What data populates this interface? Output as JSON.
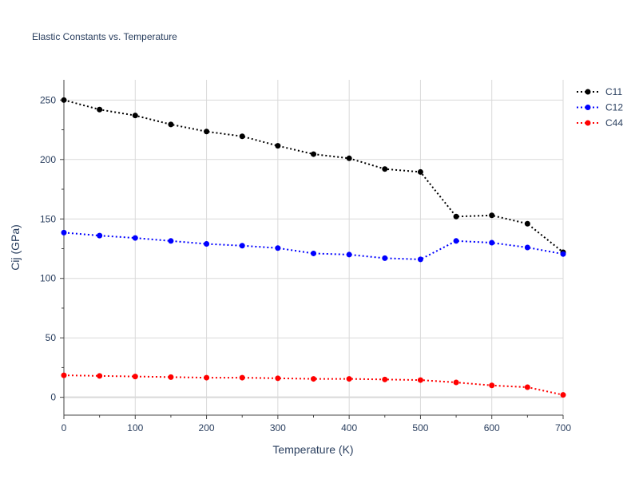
{
  "chart_data": {
    "type": "line",
    "title": "Elastic Constants vs. Temperature",
    "xlabel": "Temperature (K)",
    "ylabel": "Cij (GPa)",
    "x": [
      0,
      50,
      100,
      150,
      200,
      250,
      300,
      350,
      400,
      450,
      500,
      550,
      600,
      650,
      700
    ],
    "series": [
      {
        "name": "C11",
        "color": "#000000",
        "values": [
          250,
          242,
          237,
          229.5,
          223.5,
          219.5,
          211.5,
          204.5,
          201,
          192,
          189.5,
          152,
          153,
          146,
          122
        ]
      },
      {
        "name": "C12",
        "color": "#0000ff",
        "values": [
          138.5,
          136,
          134,
          131.5,
          129,
          127.5,
          125.5,
          121,
          120,
          117,
          116,
          131.5,
          130,
          126,
          120.5
        ]
      },
      {
        "name": "C44",
        "color": "#ff0000",
        "values": [
          18.5,
          18,
          17.5,
          17,
          16.5,
          16.5,
          16,
          15.5,
          15.5,
          15,
          14.5,
          12.5,
          10,
          8.5,
          2
        ]
      }
    ],
    "xlim": [
      0,
      700
    ],
    "ylim": [
      -15,
      267
    ],
    "xticks": [
      0,
      100,
      200,
      300,
      400,
      500,
      600,
      700
    ],
    "yticks": [
      0,
      50,
      100,
      150,
      200,
      250
    ],
    "grid": true,
    "line_style": "dotted",
    "markers": true,
    "legend_position": "top-right"
  }
}
